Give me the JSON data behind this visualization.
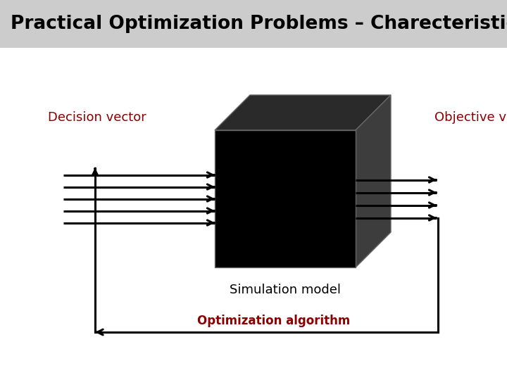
{
  "title": "Practical Optimization Problems – Charecteristics!",
  "title_color": "#000000",
  "title_bg_color": "#cccccc",
  "title_fontsize": 19,
  "bg_color": "#ffffff",
  "label_decision": "Decision vector",
  "label_objective": "Objective vector",
  "label_simulation": "Simulation model",
  "label_optimization": "Optimization algorithm",
  "red_color": "#8b0000",
  "black_color": "#000000",
  "arrow_color": "#000000",
  "n_in_arrows": 5,
  "n_out_arrows": 4,
  "box_front_color": "#000000",
  "box_top_color": "#2a2a2a",
  "box_right_color": "#3d3d3d",
  "box_edge_color": "#666666"
}
